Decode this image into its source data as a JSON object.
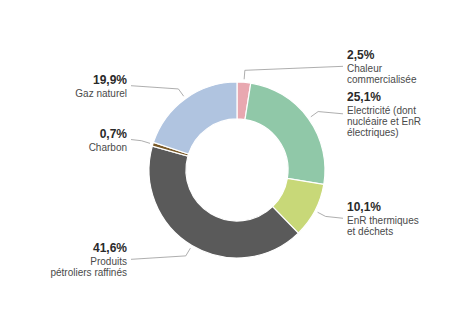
{
  "chart_data": {
    "type": "donut",
    "categories": [
      "Chaleur\ncommercialisée",
      "Electricité (dont\nnucléaire et EnR\nélectriques)",
      "EnR thermiques\net déchets",
      "Produits\npétroliers raffinés",
      "Charbon",
      "Gaz naturel"
    ],
    "values": [
      2.5,
      25.1,
      10.1,
      41.6,
      0.7,
      19.9
    ],
    "value_labels": [
      "2,5%",
      "25,1%",
      "10,1%",
      "41,6%",
      "0,7%",
      "19,9%"
    ],
    "colors": [
      "#e8a8b0",
      "#90c8a8",
      "#c8d878",
      "#5a5a5a",
      "#7a5a28",
      "#b0c4e0"
    ],
    "data_labels": true
  }
}
